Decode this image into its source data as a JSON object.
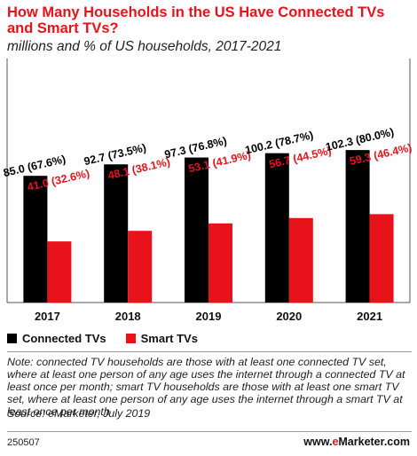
{
  "chart_data": {
    "type": "bar",
    "title": "How Many Households in the US Have Connected TVs and Smart TVs?",
    "subtitle": "millions and % of US households, 2017-2021",
    "categories": [
      "2017",
      "2018",
      "2019",
      "2020",
      "2021"
    ],
    "series": [
      {
        "name": "Connected TVs",
        "color": "#000000",
        "values": [
          85.0,
          92.7,
          97.3,
          100.2,
          102.3
        ],
        "labels": [
          "85.0 (67.6%)",
          "92.7 (73.5%)",
          "97.3 (76.8%)",
          "100.2 (78.7%)",
          "102.3 (80.0%)"
        ]
      },
      {
        "name": "Smart TVs",
        "color": "#e8121b",
        "values": [
          41.0,
          48.1,
          53.1,
          56.7,
          59.3
        ],
        "labels": [
          "41.0 (32.6%)",
          "48.1 (38.1%)",
          "53.1 (41.9%)",
          "56.7 (44.5%)",
          "59.3 (46.4%)"
        ]
      }
    ],
    "ylim": [
      0,
      115
    ],
    "grid": false,
    "legend_position": "bottom-left"
  },
  "footer": {
    "note": "Note: connected TV households are those with at least one connected TV set, where at least one person of any age uses the internet through a connected TV at least once per month; smart TV households are those with at least one smart TV set, where at least one person of any age uses the internet through a smart TV at least once per month",
    "source": "Source: eMarketer, July 2019",
    "chart_id": "250507",
    "brand_prefix": "www.",
    "brand_accent": "e",
    "brand_suffix": "Marketer.com"
  }
}
